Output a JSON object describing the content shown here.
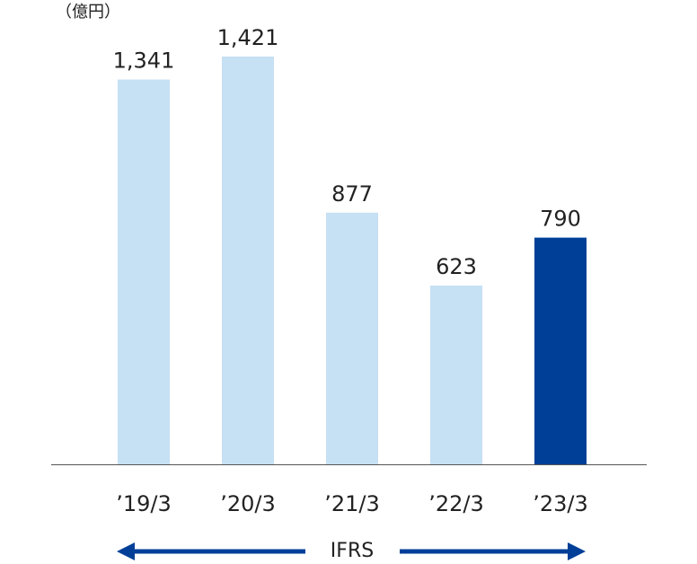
{
  "chart_data": {
    "type": "bar",
    "unit_label": "（億円）",
    "categories": [
      "’19/3",
      "’20/3",
      "’21/3",
      "’22/3",
      "’23/3"
    ],
    "values": [
      1341,
      1421,
      877,
      623,
      790
    ],
    "value_labels": [
      "1,341",
      "1,421",
      "877",
      "623",
      "790"
    ],
    "colors": [
      "#c6e0f4",
      "#c6e0f4",
      "#c6e0f4",
      "#c6e0f4",
      "#003f98"
    ],
    "annotation": "IFRS",
    "annotation_color": "#003f98"
  }
}
